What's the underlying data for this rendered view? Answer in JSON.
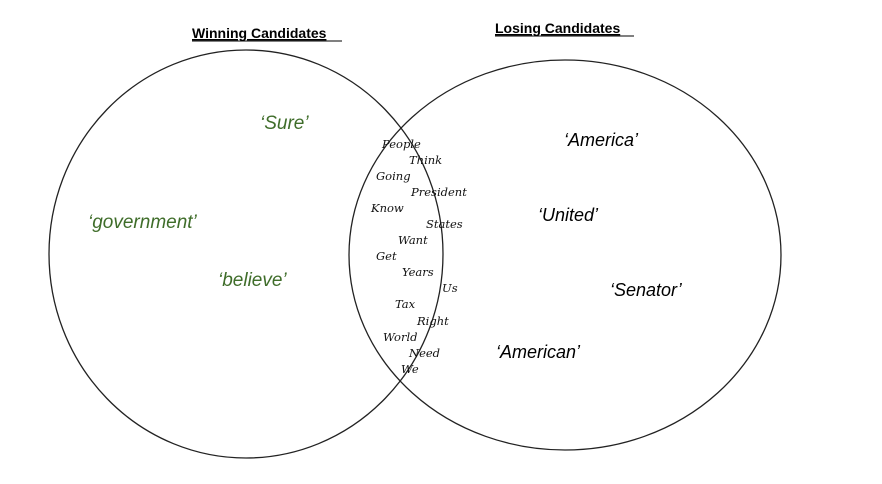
{
  "headings": {
    "winning": "Winning Candidates",
    "losing": "Losing Candidates"
  },
  "winning_words": [
    "‘Sure’",
    "‘government’",
    "‘believe’"
  ],
  "losing_words": [
    "‘America’",
    "‘United’",
    "‘Senator’",
    "‘American’"
  ],
  "shared_words": [
    "People",
    "Think",
    "Going",
    "President",
    "Know",
    "States",
    "Want",
    "Get",
    "Years",
    "Us",
    "Tax",
    "Right",
    "World",
    "Need",
    "We"
  ],
  "colors": {
    "winning_text": "#3f6d2a",
    "losing_text": "#000000",
    "outline": "#222222"
  }
}
